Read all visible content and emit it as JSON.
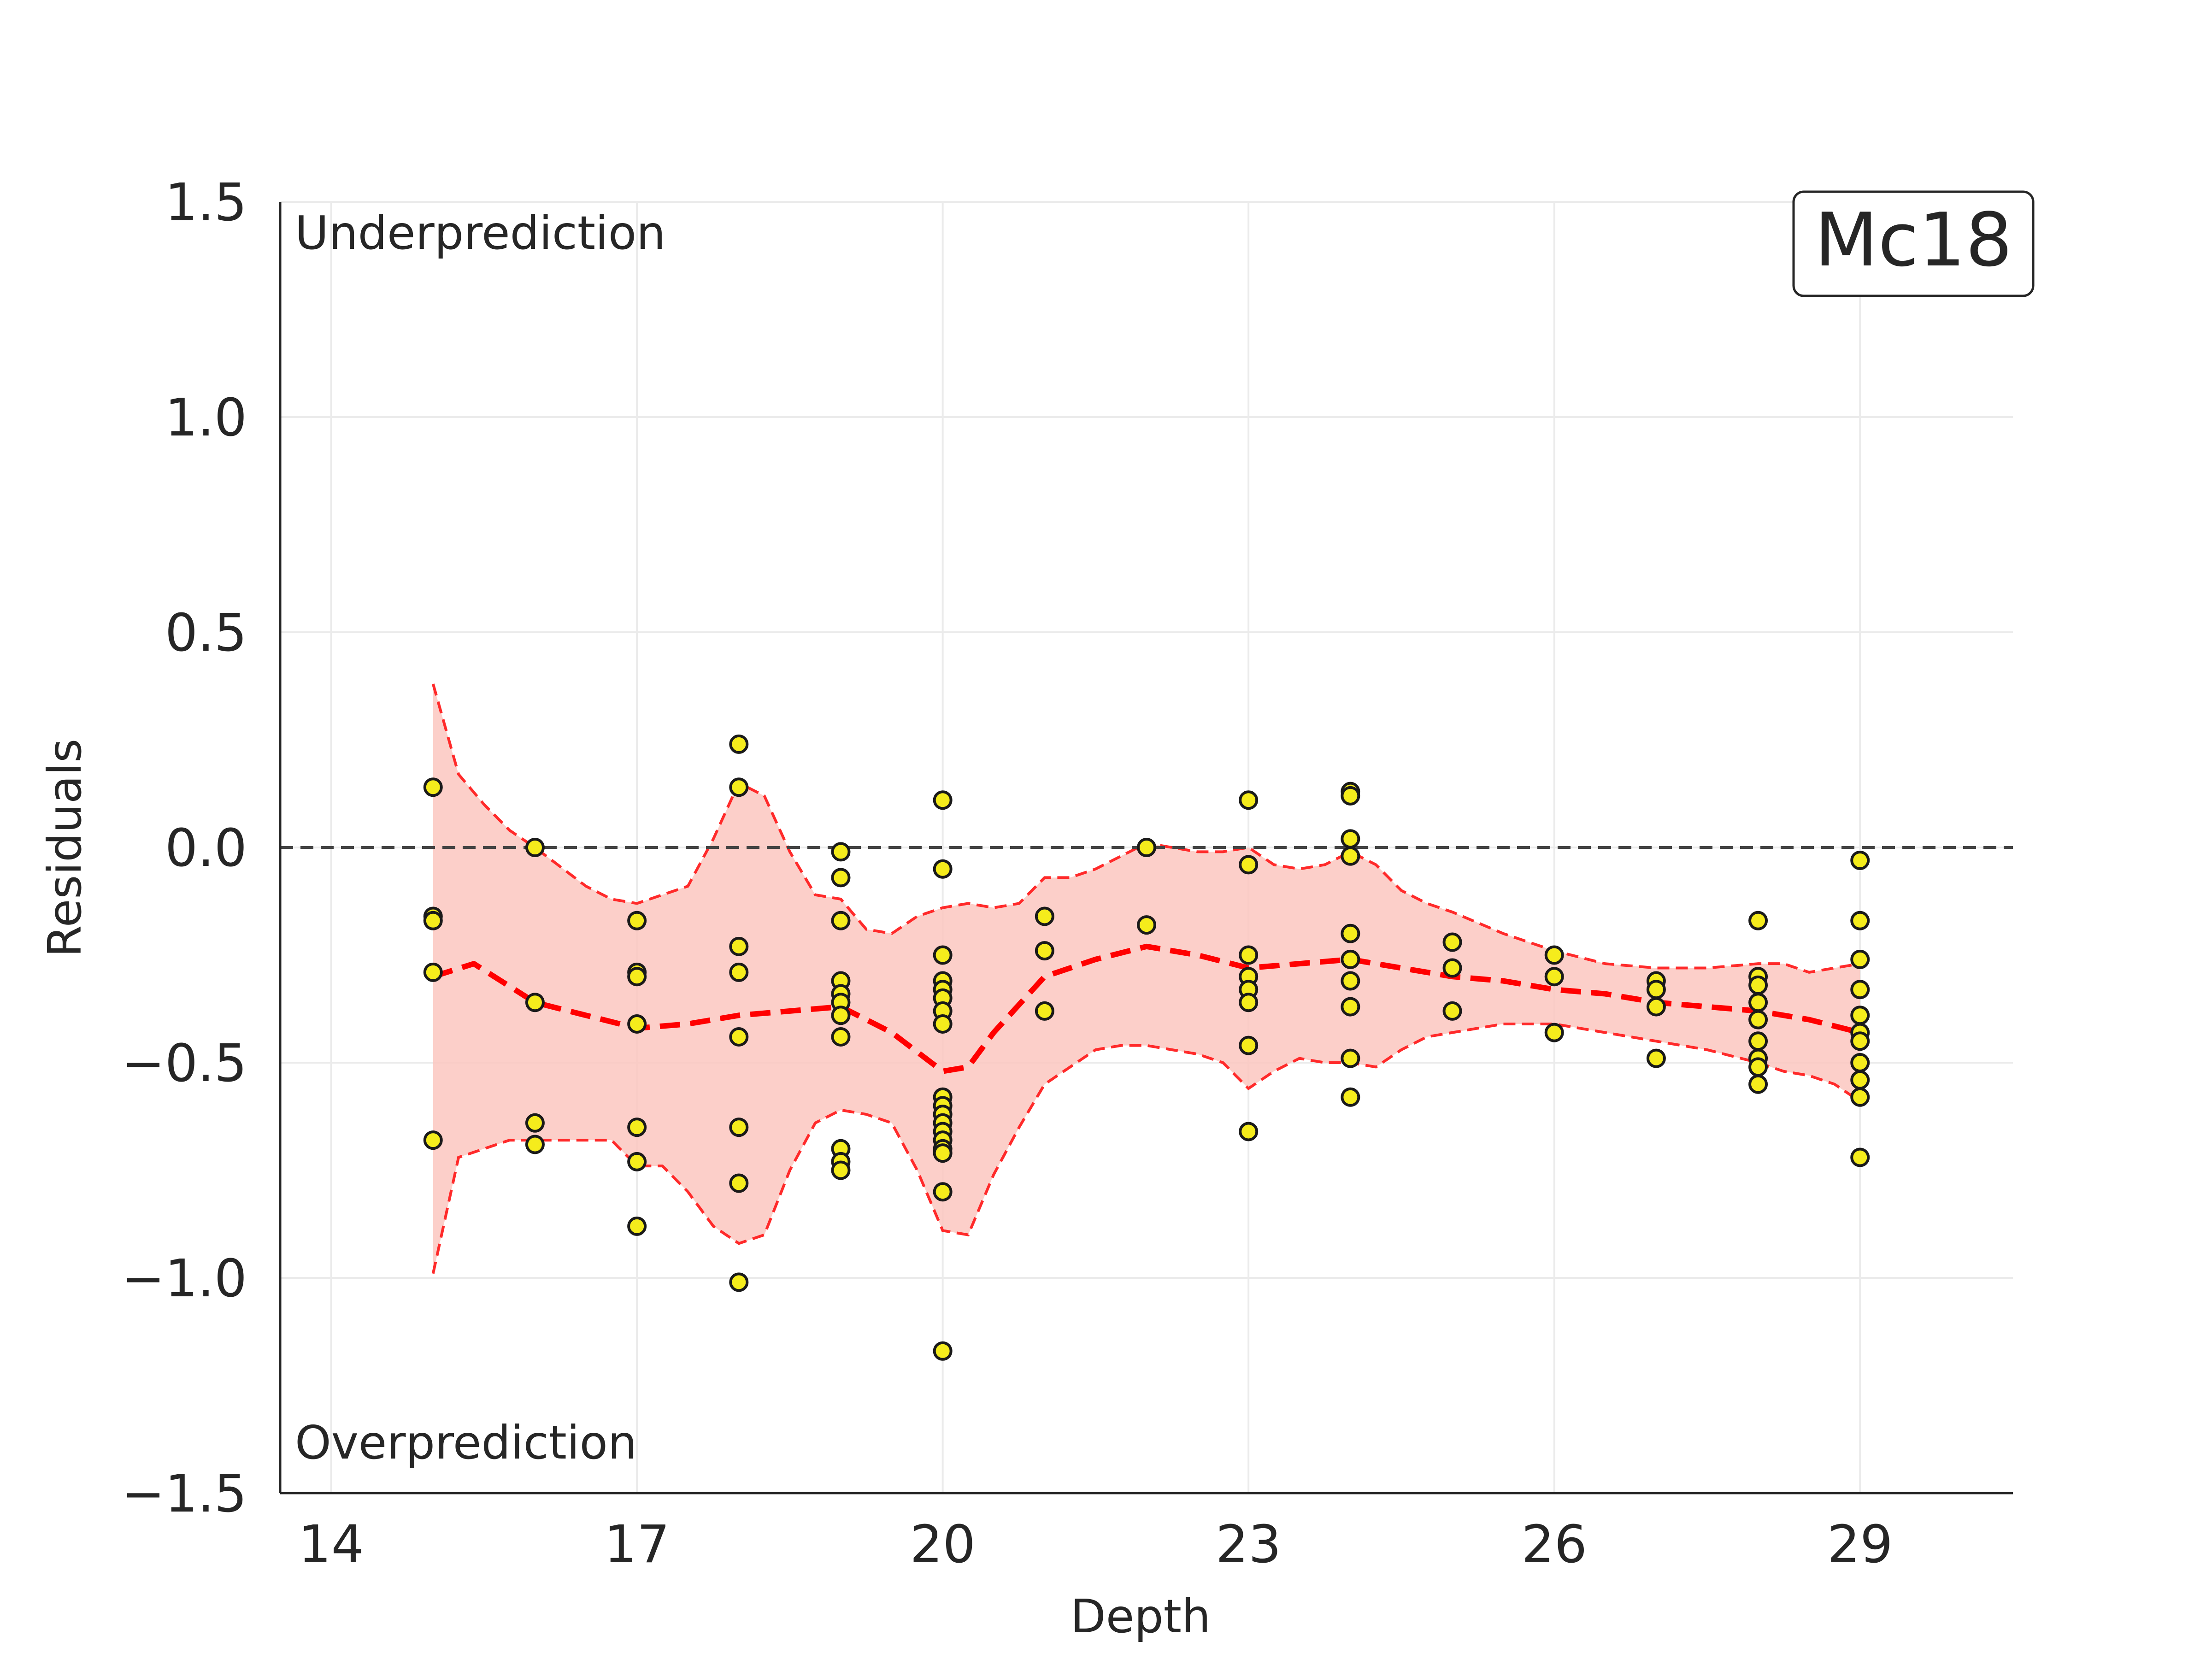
{
  "chart_data": {
    "type": "scatter",
    "title": "",
    "xlabel": "Depth",
    "ylabel": "Residuals",
    "xlim": [
      13.5,
      30.5
    ],
    "ylim": [
      -1.5,
      1.5
    ],
    "x_ticks": [
      "14",
      "17",
      "20",
      "23",
      "26",
      "29"
    ],
    "y_ticks": [
      "−1.5",
      "−1.0",
      "−0.5",
      "0.0",
      "0.5",
      "1.0",
      "1.5"
    ],
    "grid": true,
    "reference_line": 0.0,
    "annotations": {
      "top_left": "Underprediction",
      "bottom_left": "Overprediction",
      "badge": "Mc18"
    },
    "colors": {
      "points_fill": "#f5ec1c",
      "points_edge": "#1a1a1a",
      "trend": "#ff0000",
      "band_fill": "#fcc7c0",
      "band_edge": "#ff2a2a",
      "zero_line": "#444444"
    },
    "points": [
      [
        15,
        0.14
      ],
      [
        15,
        -0.16
      ],
      [
        15,
        -0.17
      ],
      [
        15,
        -0.29
      ],
      [
        15,
        -0.68
      ],
      [
        16,
        0.0
      ],
      [
        16,
        -0.36
      ],
      [
        16,
        -0.64
      ],
      [
        16,
        -0.69
      ],
      [
        17,
        -0.17
      ],
      [
        17,
        -0.29
      ],
      [
        17,
        -0.3
      ],
      [
        17,
        -0.41
      ],
      [
        17,
        -0.65
      ],
      [
        17,
        -0.73
      ],
      [
        17,
        -0.88
      ],
      [
        18,
        0.24
      ],
      [
        18,
        0.14
      ],
      [
        18,
        -0.23
      ],
      [
        18,
        -0.29
      ],
      [
        18,
        -0.44
      ],
      [
        18,
        -0.65
      ],
      [
        18,
        -0.78
      ],
      [
        18,
        -1.01
      ],
      [
        19,
        -0.01
      ],
      [
        19,
        -0.07
      ],
      [
        19,
        -0.17
      ],
      [
        19,
        -0.31
      ],
      [
        19,
        -0.34
      ],
      [
        19,
        -0.36
      ],
      [
        19,
        -0.39
      ],
      [
        19,
        -0.44
      ],
      [
        19,
        -0.7
      ],
      [
        19,
        -0.73
      ],
      [
        19,
        -0.75
      ],
      [
        20,
        0.11
      ],
      [
        20,
        -0.05
      ],
      [
        20,
        -0.25
      ],
      [
        20,
        -0.31
      ],
      [
        20,
        -0.33
      ],
      [
        20,
        -0.35
      ],
      [
        20,
        -0.38
      ],
      [
        20,
        -0.41
      ],
      [
        20,
        -0.58
      ],
      [
        20,
        -0.6
      ],
      [
        20,
        -0.62
      ],
      [
        20,
        -0.64
      ],
      [
        20,
        -0.66
      ],
      [
        20,
        -0.68
      ],
      [
        20,
        -0.7
      ],
      [
        20,
        -0.71
      ],
      [
        20,
        -0.8
      ],
      [
        20,
        -1.17
      ],
      [
        21,
        -0.16
      ],
      [
        21,
        -0.24
      ],
      [
        21,
        -0.38
      ],
      [
        22,
        0.0
      ],
      [
        22,
        -0.18
      ],
      [
        23,
        0.11
      ],
      [
        23,
        -0.04
      ],
      [
        23,
        -0.25
      ],
      [
        23,
        -0.3
      ],
      [
        23,
        -0.33
      ],
      [
        23,
        -0.36
      ],
      [
        23,
        -0.46
      ],
      [
        23,
        -0.66
      ],
      [
        24,
        0.13
      ],
      [
        24,
        0.12
      ],
      [
        24,
        0.02
      ],
      [
        24,
        -0.02
      ],
      [
        24,
        -0.2
      ],
      [
        24,
        -0.26
      ],
      [
        24,
        -0.31
      ],
      [
        24,
        -0.37
      ],
      [
        24,
        -0.49
      ],
      [
        24,
        -0.58
      ],
      [
        25,
        -0.22
      ],
      [
        25,
        -0.28
      ],
      [
        25,
        -0.38
      ],
      [
        26,
        -0.25
      ],
      [
        26,
        -0.3
      ],
      [
        26,
        -0.43
      ],
      [
        27,
        -0.31
      ],
      [
        27,
        -0.33
      ],
      [
        27,
        -0.37
      ],
      [
        27,
        -0.49
      ],
      [
        28,
        -0.17
      ],
      [
        28,
        -0.3
      ],
      [
        28,
        -0.32
      ],
      [
        28,
        -0.36
      ],
      [
        28,
        -0.4
      ],
      [
        28,
        -0.45
      ],
      [
        28,
        -0.49
      ],
      [
        28,
        -0.51
      ],
      [
        28,
        -0.55
      ],
      [
        29,
        -0.03
      ],
      [
        29,
        -0.17
      ],
      [
        29,
        -0.26
      ],
      [
        29,
        -0.33
      ],
      [
        29,
        -0.39
      ],
      [
        29,
        -0.43
      ],
      [
        29,
        -0.45
      ],
      [
        29,
        -0.5
      ],
      [
        29,
        -0.54
      ],
      [
        29,
        -0.58
      ],
      [
        29,
        -0.72
      ]
    ],
    "trend": {
      "x": [
        15,
        15.4,
        15.8,
        16,
        16.5,
        17,
        17.5,
        18,
        18.5,
        19,
        19.5,
        20,
        20.25,
        20.5,
        21,
        21.5,
        22,
        22.5,
        23,
        23.5,
        24,
        24.5,
        25,
        25.5,
        26,
        26.5,
        27,
        27.5,
        28,
        28.5,
        29
      ],
      "y": [
        -0.3,
        -0.27,
        -0.33,
        -0.36,
        -0.39,
        -0.42,
        -0.41,
        -0.39,
        -0.38,
        -0.37,
        -0.43,
        -0.52,
        -0.51,
        -0.43,
        -0.3,
        -0.26,
        -0.23,
        -0.25,
        -0.28,
        -0.27,
        -0.26,
        -0.28,
        -0.3,
        -0.31,
        -0.33,
        -0.34,
        -0.36,
        -0.37,
        -0.38,
        -0.4,
        -0.43
      ]
    },
    "band": {
      "x": [
        15,
        15.25,
        15.5,
        15.75,
        16,
        16.5,
        16.75,
        17,
        17.25,
        17.5,
        17.75,
        18,
        18.25,
        18.5,
        18.75,
        19,
        19.25,
        19.5,
        19.75,
        20,
        20.25,
        20.5,
        20.75,
        21,
        21.25,
        21.5,
        21.75,
        22,
        22.25,
        22.5,
        22.75,
        23,
        23.25,
        23.5,
        23.75,
        24,
        24.25,
        24.5,
        24.75,
        25,
        25.5,
        26,
        26.5,
        27,
        27.5,
        28,
        28.25,
        28.5,
        28.75,
        29
      ],
      "upper": [
        0.38,
        0.17,
        0.1,
        0.04,
        0.0,
        -0.09,
        -0.12,
        -0.13,
        -0.11,
        -0.09,
        0.02,
        0.15,
        0.12,
        -0.01,
        -0.11,
        -0.12,
        -0.19,
        -0.2,
        -0.16,
        -0.14,
        -0.13,
        -0.14,
        -0.13,
        -0.07,
        -0.07,
        -0.05,
        -0.02,
        0.01,
        0.0,
        -0.01,
        -0.01,
        0.0,
        -0.04,
        -0.05,
        -0.04,
        -0.01,
        -0.04,
        -0.1,
        -0.13,
        -0.15,
        -0.2,
        -0.24,
        -0.27,
        -0.28,
        -0.28,
        -0.27,
        -0.27,
        -0.29,
        -0.28,
        -0.27
      ],
      "lower": [
        -0.99,
        -0.72,
        -0.7,
        -0.68,
        -0.68,
        -0.68,
        -0.68,
        -0.74,
        -0.74,
        -0.8,
        -0.88,
        -0.92,
        -0.9,
        -0.75,
        -0.64,
        -0.61,
        -0.62,
        -0.64,
        -0.75,
        -0.89,
        -0.9,
        -0.76,
        -0.65,
        -0.55,
        -0.51,
        -0.47,
        -0.46,
        -0.46,
        -0.47,
        -0.48,
        -0.5,
        -0.56,
        -0.52,
        -0.49,
        -0.5,
        -0.5,
        -0.51,
        -0.47,
        -0.44,
        -0.43,
        -0.41,
        -0.41,
        -0.43,
        -0.45,
        -0.47,
        -0.5,
        -0.52,
        -0.53,
        -0.55,
        -0.59
      ]
    }
  }
}
